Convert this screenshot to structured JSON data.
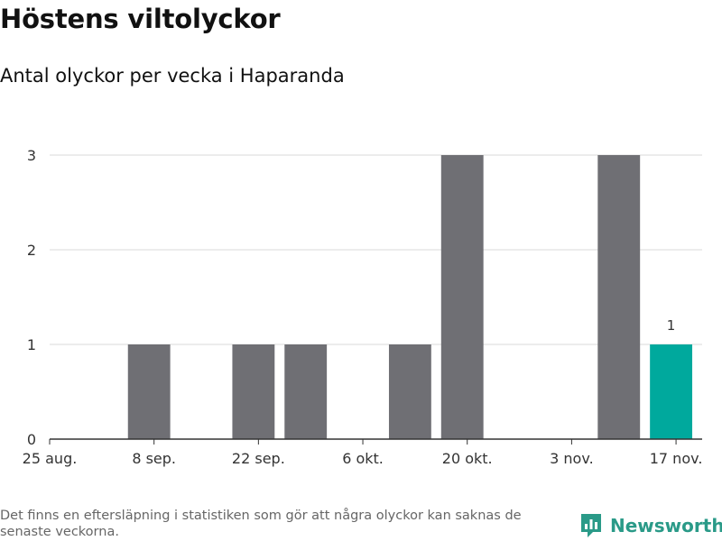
{
  "header": {
    "title": "Höstens viltolyckor",
    "subtitle": "Antal olyckor per vecka i Haparanda"
  },
  "chart_data": {
    "type": "bar",
    "categories": [
      "25 aug.",
      "1 sep.",
      "8 sep.",
      "15 sep.",
      "22 sep.",
      "29 sep.",
      "6 okt.",
      "13 okt.",
      "20 okt.",
      "27 okt.",
      "3 nov.",
      "10 nov.",
      "17 nov."
    ],
    "values": [
      0,
      0,
      1,
      0,
      1,
      1,
      0,
      1,
      3,
      0,
      0,
      3,
      1
    ],
    "x_tick_labels": [
      "25 aug.",
      "8 sep.",
      "22 sep.",
      "6 okt.",
      "20 okt.",
      "3 nov.",
      "17 nov."
    ],
    "y_ticks": [
      0,
      1,
      2,
      3
    ],
    "ylim": [
      0,
      3
    ],
    "grid": true,
    "highlight_index": 12,
    "highlight_label": "1",
    "colors": {
      "bar": "#6f6f74",
      "highlight": "#00a99d",
      "grid": "#d9d9d9",
      "axis": "#333333"
    }
  },
  "footer": {
    "note": "Det finns en eftersläpning i statistiken som gör att några olyckor kan saknas de senaste veckorna.",
    "brand": "Newsworthy",
    "brand_icon": "newsworthy-logo-icon",
    "brand_color": "#2a9a88"
  }
}
